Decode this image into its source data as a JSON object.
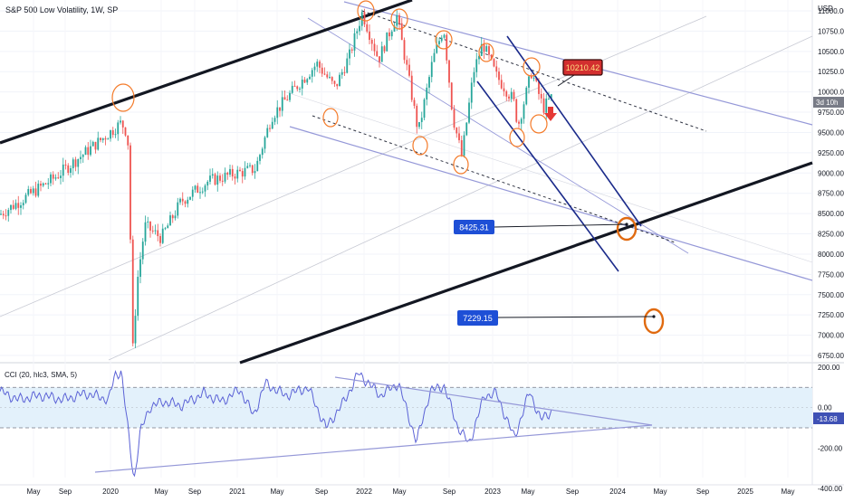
{
  "header": {
    "title": "S&P 500 Low Volatility, 1W, SP",
    "currency": "USD"
  },
  "price_badge": {
    "label": "3d 10h"
  },
  "cci_panel": {
    "indicator_label": "CCI (20, hlc3, SMA, 5)",
    "current_value_label": "-13.68"
  },
  "annotations": {
    "top_callout": "10210.42",
    "target_1": "8425.31",
    "target_2": "7229.15"
  },
  "colors": {
    "up_candle": "#26a69a",
    "down_candle": "#ef5350",
    "black_channel": "#131722",
    "channel_lavender": "#9598d8",
    "navy_lines": "#1a2a8a",
    "circle_orange": "#f47b2a",
    "cci_line": "#5b62d6",
    "cci_band_fill": "#e3f1fb",
    "callout_red": "#d32f2f",
    "label_blue": "#1e4fd6"
  },
  "chart_data": [
    {
      "type": "candlestick",
      "title": "S&P 500 Low Volatility, 1W, SP",
      "x_tick_labels": [
        "May",
        "Sep",
        "2020",
        "May",
        "Sep",
        "2021",
        "May",
        "Sep",
        "2022",
        "May",
        "Sep",
        "2023",
        "May",
        "Sep",
        "2024",
        "May",
        "Sep",
        "2025",
        "May"
      ],
      "y_tick_labels": [
        "11000.00",
        "10750.00",
        "10500.00",
        "10250.00",
        "10000.00",
        "9750.00",
        "9500.00",
        "9250.00",
        "9000.00",
        "8750.00",
        "8500.00",
        "8250.00",
        "8000.00",
        "7750.00",
        "7500.00",
        "7250.00",
        "7000.00",
        "6750.00"
      ],
      "ylim": [
        6700,
        11180
      ],
      "x": [
        "2019-02",
        "2019-05",
        "2019-08",
        "2019-11",
        "2020-02",
        "2020-03",
        "2020-06",
        "2020-09",
        "2020-12",
        "2021-03",
        "2021-06",
        "2021-09",
        "2021-12",
        "2022-01",
        "2022-03",
        "2022-04",
        "2022-06",
        "2022-08",
        "2022-10",
        "2022-12",
        "2023-02",
        "2023-04",
        "2023-06",
        "2023-07"
      ],
      "close": [
        8500,
        8800,
        9100,
        9400,
        9600,
        6800,
        8200,
        8350,
        8700,
        9400,
        9800,
        9950,
        11000,
        10700,
        10150,
        10750,
        9400,
        10300,
        9200,
        10300,
        10150,
        10250,
        9700,
        9950
      ],
      "annotations": [
        "10210.42",
        "8425.31",
        "7229.15"
      ]
    },
    {
      "type": "line",
      "title": "CCI (20, hlc3, SMA, 5)",
      "y_tick_labels": [
        "200.00",
        "0.00",
        "-200.00",
        "-400.00"
      ],
      "ylim": [
        -470,
        270
      ],
      "bands": [
        100,
        -100
      ],
      "x": [
        "2019-02",
        "2019-05",
        "2019-08",
        "2019-11",
        "2020-02",
        "2020-03",
        "2020-06",
        "2020-09",
        "2020-12",
        "2021-03",
        "2021-06",
        "2021-09",
        "2021-12",
        "2022-01",
        "2022-03",
        "2022-04",
        "2022-06",
        "2022-08",
        "2022-10",
        "2022-12",
        "2023-02",
        "2023-04",
        "2023-06",
        "2023-07"
      ],
      "values": [
        80,
        60,
        70,
        90,
        180,
        -360,
        40,
        -40,
        60,
        110,
        70,
        -20,
        190,
        50,
        -140,
        120,
        -180,
        60,
        -170,
        60,
        -150,
        80,
        -50,
        -13.68
      ],
      "last_value": -13.68
    }
  ]
}
